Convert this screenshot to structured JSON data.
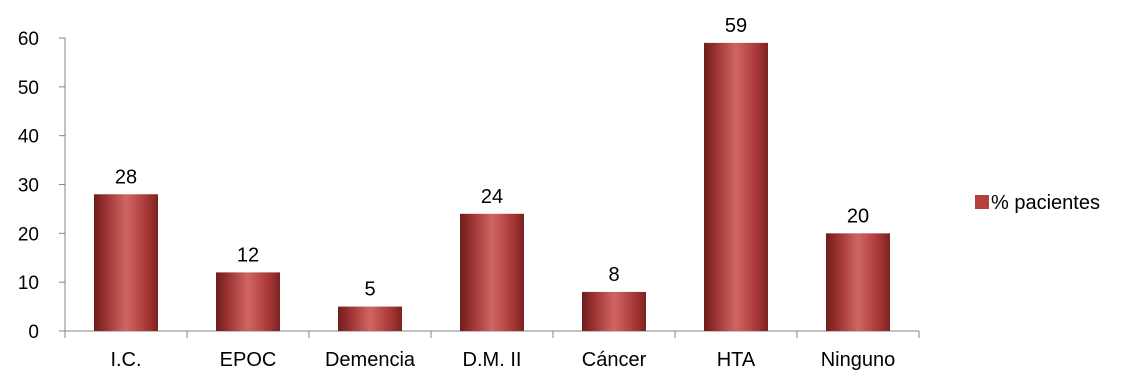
{
  "chart_data": {
    "type": "bar",
    "categories": [
      "I.C.",
      "EPOC",
      "Demencia",
      "D.M. II",
      "Cáncer",
      "HTA",
      "Ninguno"
    ],
    "series": [
      {
        "name": "% pacientes",
        "values": [
          28,
          12,
          5,
          24,
          8,
          59,
          20
        ],
        "color": "#b5403f"
      }
    ],
    "data_labels": [
      "28",
      "12",
      "5",
      "24",
      "8",
      "59",
      "20"
    ],
    "y_ticks": [
      0,
      10,
      20,
      30,
      40,
      50,
      60
    ],
    "ylim": [
      0,
      60
    ],
    "grid": false,
    "legend_position": "right"
  }
}
